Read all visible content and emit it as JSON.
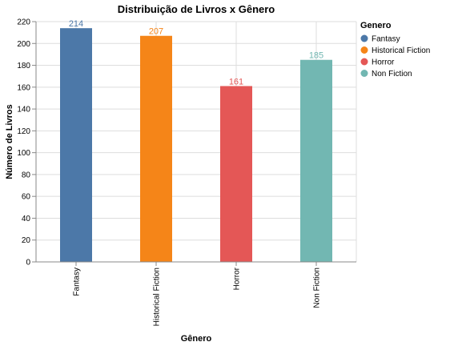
{
  "chart_data": {
    "type": "bar",
    "title": "Distribuição de Livros x Gênero",
    "xlabel": "Gênero",
    "ylabel": "Número de Livros",
    "categories": [
      "Fantasy",
      "Historical Fiction",
      "Horror",
      "Non Fiction"
    ],
    "values": [
      214,
      207,
      161,
      185
    ],
    "data_labels": [
      "214",
      "207",
      "161",
      "185"
    ],
    "colors": [
      "#4c78a8",
      "#f58518",
      "#e45756",
      "#72b7b2"
    ],
    "ylim": [
      0,
      220
    ],
    "yticks": [
      0,
      20,
      40,
      60,
      80,
      100,
      120,
      140,
      160,
      180,
      200,
      220
    ],
    "grid": true,
    "legend": {
      "title": "Genero",
      "placement": "top-right",
      "entries": [
        "Fantasy",
        "Historical Fiction",
        "Horror",
        "Non Fiction"
      ]
    }
  }
}
